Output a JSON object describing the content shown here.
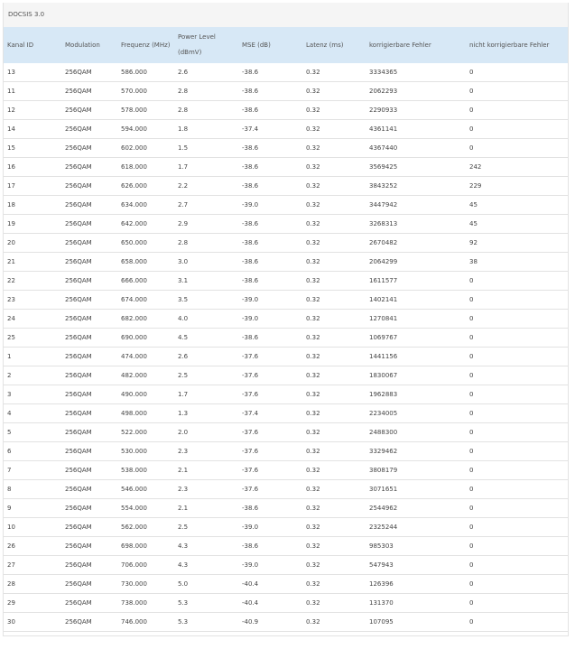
{
  "section_title": "DOCSIS 3.0",
  "columns": [
    "Kanal ID",
    "Modulation",
    "Frequenz (MHz)",
    "Power Level\n(dBmV)",
    "MSE (dB)",
    "Latenz (ms)",
    "korrigierbare Fehler",
    "nicht korrigierbare Fehler"
  ],
  "rows": [
    [
      "13",
      "256QAM",
      "586.000",
      "2.6",
      "-38.6",
      "0.32",
      "3334365",
      "0"
    ],
    [
      "11",
      "256QAM",
      "570.000",
      "2.8",
      "-38.6",
      "0.32",
      "2062293",
      "0"
    ],
    [
      "12",
      "256QAM",
      "578.000",
      "2.8",
      "-38.6",
      "0.32",
      "2290933",
      "0"
    ],
    [
      "14",
      "256QAM",
      "594.000",
      "1.8",
      "-37.4",
      "0.32",
      "4361141",
      "0"
    ],
    [
      "15",
      "256QAM",
      "602.000",
      "1.5",
      "-38.6",
      "0.32",
      "4367440",
      "0"
    ],
    [
      "16",
      "256QAM",
      "618.000",
      "1.7",
      "-38.6",
      "0.32",
      "3569425",
      "242"
    ],
    [
      "17",
      "256QAM",
      "626.000",
      "2.2",
      "-38.6",
      "0.32",
      "3843252",
      "229"
    ],
    [
      "18",
      "256QAM",
      "634.000",
      "2.7",
      "-39.0",
      "0.32",
      "3447942",
      "45"
    ],
    [
      "19",
      "256QAM",
      "642.000",
      "2.9",
      "-38.6",
      "0.32",
      "3268313",
      "45"
    ],
    [
      "20",
      "256QAM",
      "650.000",
      "2.8",
      "-38.6",
      "0.32",
      "2670482",
      "92"
    ],
    [
      "21",
      "256QAM",
      "658.000",
      "3.0",
      "-38.6",
      "0.32",
      "2064299",
      "38"
    ],
    [
      "22",
      "256QAM",
      "666.000",
      "3.1",
      "-38.6",
      "0.32",
      "1611577",
      "0"
    ],
    [
      "23",
      "256QAM",
      "674.000",
      "3.5",
      "-39.0",
      "0.32",
      "1402141",
      "0"
    ],
    [
      "24",
      "256QAM",
      "682.000",
      "4.0",
      "-39.0",
      "0.32",
      "1270841",
      "0"
    ],
    [
      "25",
      "256QAM",
      "690.000",
      "4.5",
      "-38.6",
      "0.32",
      "1069767",
      "0"
    ],
    [
      "1",
      "256QAM",
      "474.000",
      "2.6",
      "-37.6",
      "0.32",
      "1441156",
      "0"
    ],
    [
      "2",
      "256QAM",
      "482.000",
      "2.5",
      "-37.6",
      "0.32",
      "1830067",
      "0"
    ],
    [
      "3",
      "256QAM",
      "490.000",
      "1.7",
      "-37.6",
      "0.32",
      "1962883",
      "0"
    ],
    [
      "4",
      "256QAM",
      "498.000",
      "1.3",
      "-37.4",
      "0.32",
      "2234005",
      "0"
    ],
    [
      "5",
      "256QAM",
      "522.000",
      "2.0",
      "-37.6",
      "0.32",
      "2488300",
      "0"
    ],
    [
      "6",
      "256QAM",
      "530.000",
      "2.3",
      "-37.6",
      "0.32",
      "3329462",
      "0"
    ],
    [
      "7",
      "256QAM",
      "538.000",
      "2.1",
      "-37.6",
      "0.32",
      "3808179",
      "0"
    ],
    [
      "8",
      "256QAM",
      "546.000",
      "2.3",
      "-37.6",
      "0.32",
      "3071651",
      "0"
    ],
    [
      "9",
      "256QAM",
      "554.000",
      "2.1",
      "-38.6",
      "0.32",
      "2544962",
      "0"
    ],
    [
      "10",
      "256QAM",
      "562.000",
      "2.5",
      "-39.0",
      "0.32",
      "2325244",
      "0"
    ],
    [
      "26",
      "256QAM",
      "698.000",
      "4.3",
      "-38.6",
      "0.32",
      "985303",
      "0"
    ],
    [
      "27",
      "256QAM",
      "706.000",
      "4.3",
      "-39.0",
      "0.32",
      "547943",
      "0"
    ],
    [
      "28",
      "256QAM",
      "730.000",
      "5.0",
      "-40.4",
      "0.32",
      "126396",
      "0"
    ],
    [
      "29",
      "256QAM",
      "738.000",
      "5.3",
      "-40.4",
      "0.32",
      "131370",
      "0"
    ],
    [
      "30",
      "256QAM",
      "746.000",
      "5.3",
      "-40.9",
      "0.32",
      "107095",
      "0"
    ]
  ]
}
